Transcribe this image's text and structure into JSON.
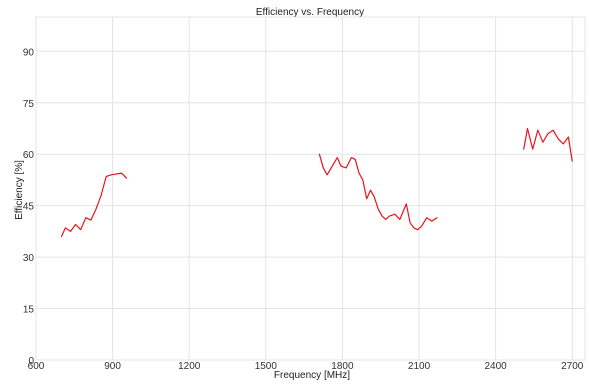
{
  "chart_data": {
    "type": "line",
    "title": "Efficiency vs. Frequency",
    "xlabel": "Frequency [MHz]",
    "ylabel": "Efficiency [%]",
    "xlim": [
      600,
      2750
    ],
    "ylim": [
      0,
      100
    ],
    "x_ticks": [
      600,
      900,
      1200,
      1500,
      1800,
      2100,
      2400,
      2700
    ],
    "y_ticks": [
      0,
      15,
      30,
      45,
      60,
      75,
      90
    ],
    "grid": true,
    "line_color": "#e8141c",
    "series": [
      {
        "x": [
          700,
          715,
          735,
          755,
          775,
          795,
          815,
          835,
          855,
          875,
          895,
          935,
          955
        ],
        "y": [
          36,
          38.5,
          37.5,
          39.5,
          38,
          41.5,
          40.8,
          44,
          48,
          53.5,
          54,
          54.5,
          53
        ]
      },
      {
        "x": [
          1710,
          1725,
          1740,
          1760,
          1780,
          1795,
          1815,
          1835,
          1850,
          1865,
          1880,
          1895,
          1910,
          1925,
          1940,
          1955,
          1970,
          1985,
          2005,
          2025,
          2050,
          2065,
          2080,
          2095,
          2110,
          2130,
          2150,
          2170
        ],
        "y": [
          60,
          56,
          54,
          56.5,
          59,
          56.5,
          56,
          59,
          58.5,
          54.5,
          52.5,
          47,
          49.5,
          47.5,
          44,
          42,
          41,
          42,
          42.5,
          41,
          45.5,
          40,
          38.5,
          38,
          39,
          41.5,
          40.5,
          41.5
        ]
      },
      {
        "x": [
          2510,
          2525,
          2545,
          2565,
          2585,
          2605,
          2625,
          2645,
          2665,
          2685,
          2700
        ],
        "y": [
          61.5,
          67.5,
          61.5,
          67,
          63.5,
          66,
          67,
          64.5,
          63,
          65,
          58
        ]
      }
    ]
  }
}
